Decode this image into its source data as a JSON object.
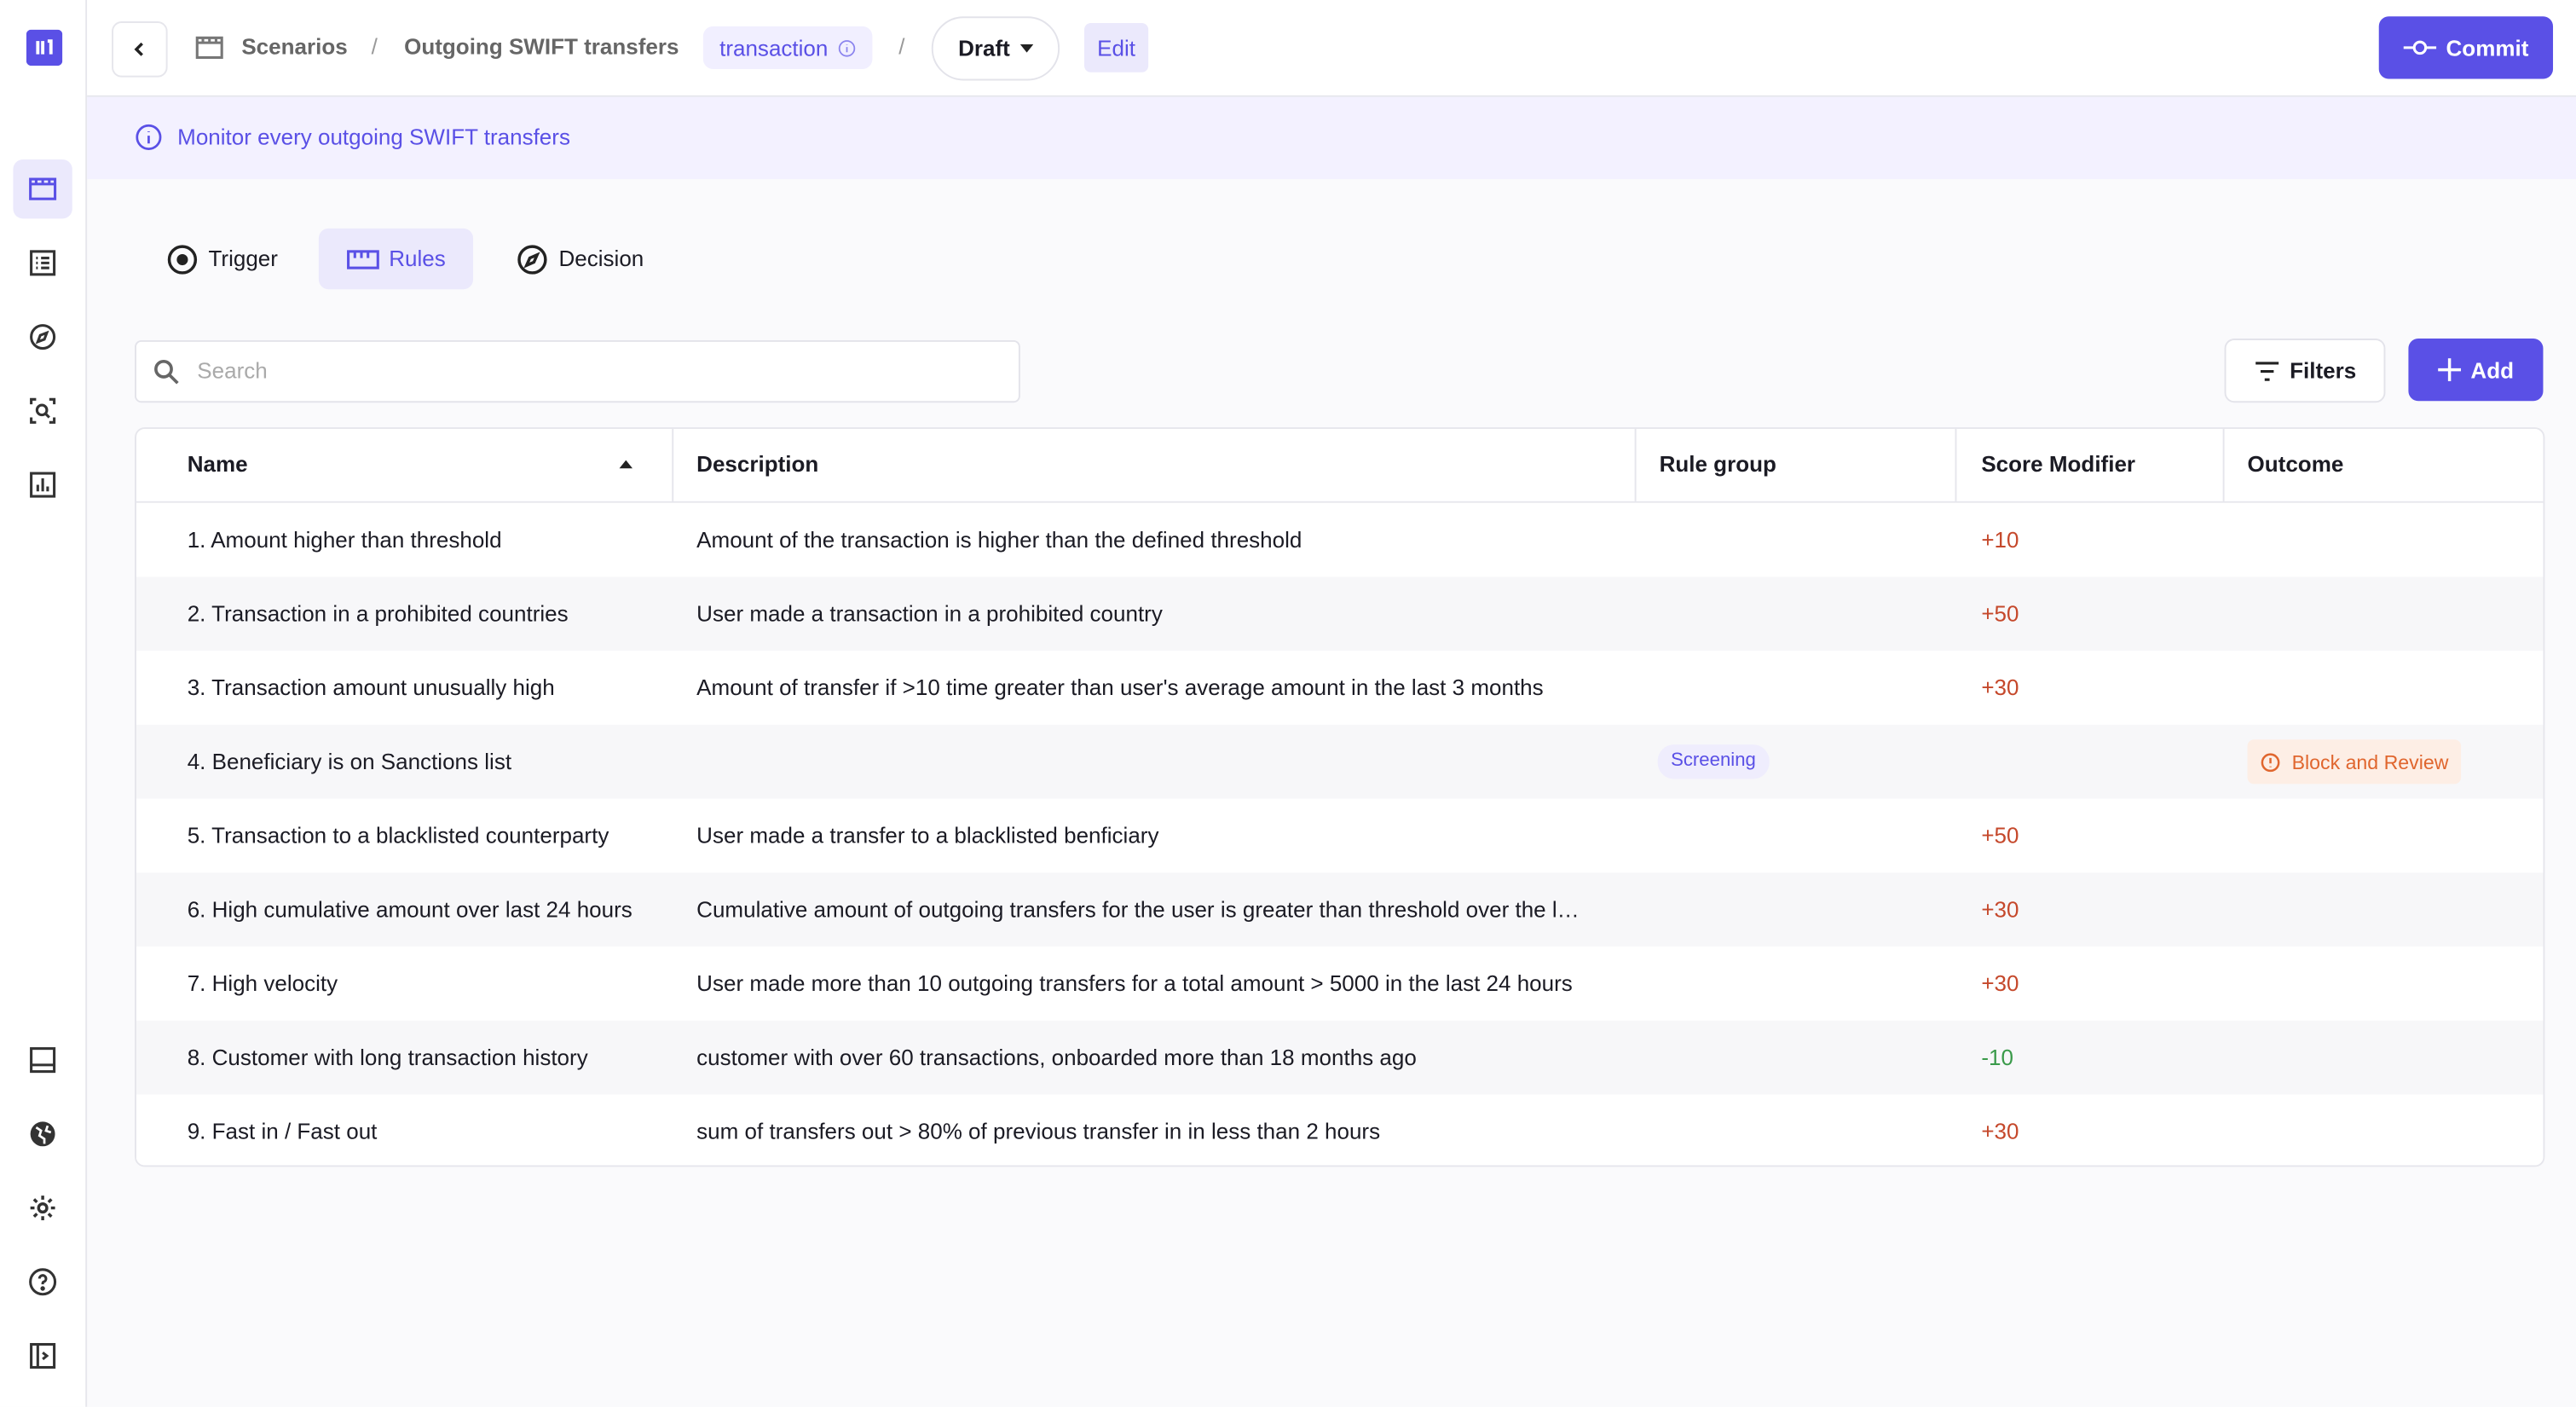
{
  "breadcrumb": {
    "section": "Scenarios",
    "scenario": "Outgoing SWIFT transfers",
    "trigger_object": "transaction",
    "version": "Draft",
    "mode": "Edit"
  },
  "commit": "Commit",
  "banner": "Monitor every outgoing SWIFT transfers",
  "tabs": [
    "Trigger",
    "Rules",
    "Decision"
  ],
  "search_placeholder": "Search",
  "filters": "Filters",
  "add": "Add",
  "table": {
    "columns": [
      "Name",
      "Description",
      "Rule group",
      "Score Modifier",
      "Outcome"
    ],
    "rows": [
      [
        "1. Amount higher than threshold",
        "Amount of the transaction is higher than the defined threshold",
        null,
        "+10",
        null
      ],
      [
        "2. Transaction in a prohibited countries",
        "User made a transaction in a prohibited country",
        null,
        "+50",
        null
      ],
      [
        "3. Transaction amount unusually high",
        "Amount of transfer if >10 time greater than user's average amount in the last 3 months",
        null,
        "+30",
        null
      ],
      [
        "4. Beneficiary is on Sanctions list",
        null,
        "Screening",
        null,
        "Block and Review"
      ],
      [
        "5. Transaction to a blacklisted counterparty",
        "User made a transfer to a blacklisted benficiary",
        null,
        "+50",
        null
      ],
      [
        "6. High cumulative amount over last 24 hours",
        "Cumulative amount of outgoing transfers for the user is greater than threshold over the l…",
        null,
        "+30",
        null
      ],
      [
        "7. High velocity",
        "User made more than 10 outgoing transfers for a total amount > 5000 in the last 24 hours",
        null,
        "+30",
        null
      ],
      [
        "8. Customer with long transaction history",
        "customer with over 60 transactions, onboarded more than 18 months ago",
        null,
        "-10",
        null
      ],
      [
        "9. Fast in / Fast out",
        "sum of transfers out > 80% of previous transfer in in less than 2 hours",
        null,
        "+30",
        null
      ]
    ]
  }
}
